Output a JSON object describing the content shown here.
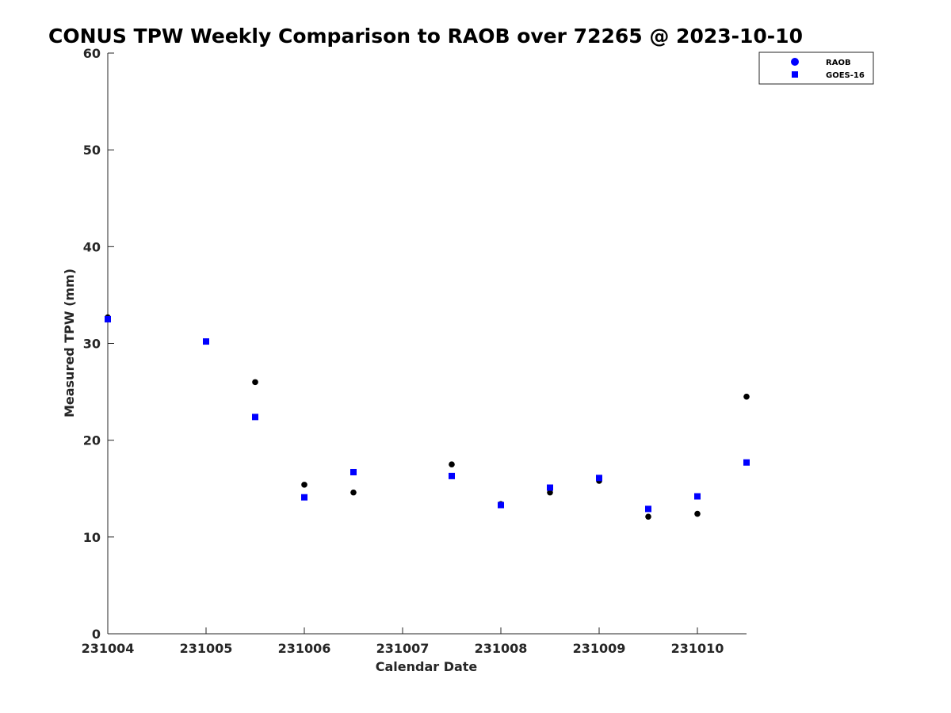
{
  "chart_data": {
    "type": "scatter",
    "title": "CONUS TPW Weekly Comparison to RAOB over 72265 @ 2023-10-10",
    "xlabel": "Calendar Date",
    "ylabel": "Measured TPW (mm)",
    "xlim": [
      0,
      6.5
    ],
    "ylim": [
      0,
      60
    ],
    "xticks": [
      0,
      1,
      2,
      3,
      4,
      5,
      6
    ],
    "xtick_labels": [
      "231004",
      "231005",
      "231006",
      "231007",
      "231008",
      "231009",
      "231010"
    ],
    "yticks": [
      0,
      10,
      20,
      30,
      40,
      50,
      60
    ],
    "ytick_labels": [
      "0",
      "10",
      "20",
      "30",
      "40",
      "50",
      "60"
    ],
    "grid": false,
    "legend_position": "top-right",
    "series": [
      {
        "name": "RAOB",
        "marker": "circle",
        "color": "#000000",
        "legend_color": "#0000ff",
        "x": [
          0,
          1,
          1.5,
          2,
          2.5,
          3.5,
          4,
          4.5,
          5,
          5.5,
          6,
          6.5
        ],
        "y": [
          32.7,
          30.2,
          26.0,
          15.4,
          14.6,
          17.5,
          13.4,
          14.6,
          15.8,
          12.1,
          12.4,
          24.5
        ]
      },
      {
        "name": "GOES-16",
        "marker": "square",
        "color": "#0000ff",
        "legend_color": "#0000ff",
        "x": [
          0,
          1,
          1.5,
          2,
          2.5,
          3.5,
          4,
          4.5,
          5,
          5.5,
          6,
          6.5
        ],
        "y": [
          32.5,
          30.2,
          22.4,
          14.1,
          16.7,
          16.3,
          13.3,
          15.1,
          16.1,
          12.9,
          14.2,
          17.7
        ]
      }
    ]
  }
}
